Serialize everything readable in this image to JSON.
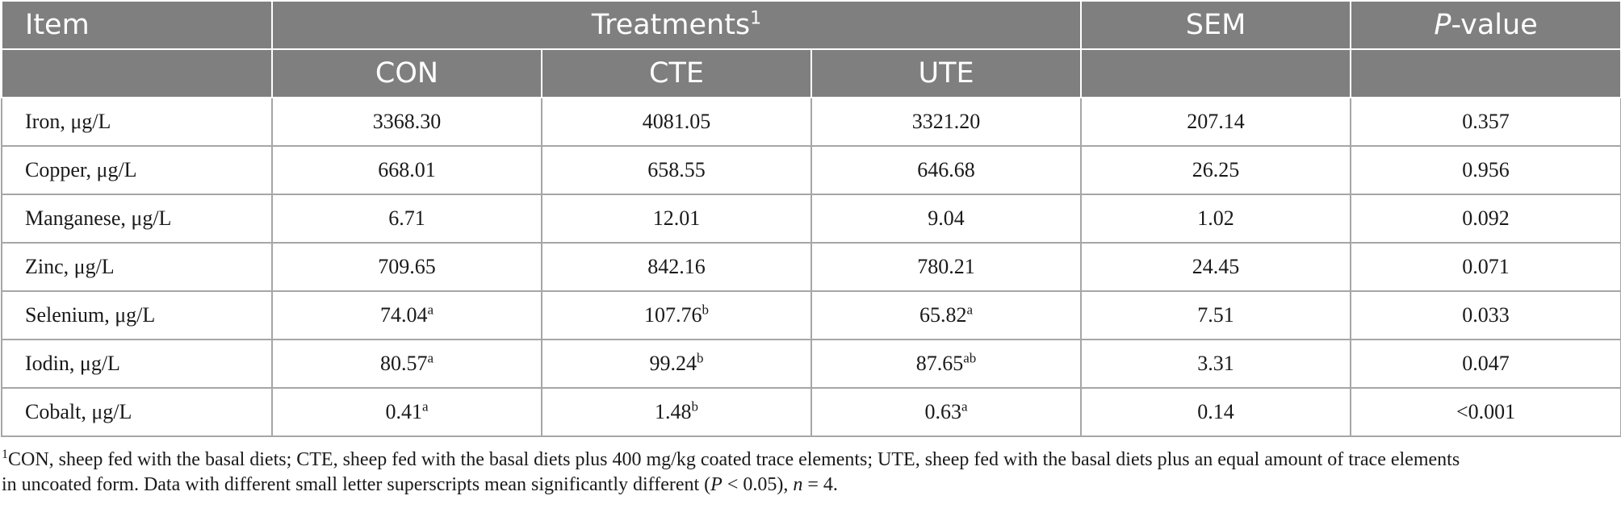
{
  "table": {
    "headers": {
      "item": "Item",
      "treatments": "Treatments",
      "treatments_sup": "1",
      "sem": "SEM",
      "pvalue_italic": "P",
      "pvalue_rest": "-value",
      "con": "CON",
      "cte": "CTE",
      "ute": "UTE"
    },
    "rows": [
      {
        "item": "Iron, μg/L",
        "con": "3368.30",
        "con_sup": "",
        "cte": "4081.05",
        "cte_sup": "",
        "ute": "3321.20",
        "ute_sup": "",
        "sem": "207.14",
        "p": "0.357"
      },
      {
        "item": "Copper, μg/L",
        "con": "668.01",
        "con_sup": "",
        "cte": "658.55",
        "cte_sup": "",
        "ute": "646.68",
        "ute_sup": "",
        "sem": "26.25",
        "p": "0.956"
      },
      {
        "item": "Manganese, μg/L",
        "con": "6.71",
        "con_sup": "",
        "cte": "12.01",
        "cte_sup": "",
        "ute": "9.04",
        "ute_sup": "",
        "sem": "1.02",
        "p": "0.092"
      },
      {
        "item": "Zinc, μg/L",
        "con": "709.65",
        "con_sup": "",
        "cte": "842.16",
        "cte_sup": "",
        "ute": "780.21",
        "ute_sup": "",
        "sem": "24.45",
        "p": "0.071"
      },
      {
        "item": "Selenium, μg/L",
        "con": "74.04",
        "con_sup": "a",
        "cte": "107.76",
        "cte_sup": "b",
        "ute": "65.82",
        "ute_sup": "a",
        "sem": "7.51",
        "p": "0.033"
      },
      {
        "item": "Iodin, μg/L",
        "con": "80.57",
        "con_sup": "a",
        "cte": "99.24",
        "cte_sup": "b",
        "ute": "87.65",
        "ute_sup": "ab",
        "sem": "3.31",
        "p": "0.047"
      },
      {
        "item": "Cobalt, μg/L",
        "con": "0.41",
        "con_sup": "a",
        "cte": "1.48",
        "cte_sup": "b",
        "ute": "0.63",
        "ute_sup": "a",
        "sem": "0.14",
        "p": "<0.001"
      }
    ]
  },
  "footnote": {
    "sup": "1",
    "line1": "CON, sheep fed with the basal diets; CTE, sheep fed with the basal diets plus 400 mg/kg coated trace elements; UTE, sheep fed with the basal diets plus an equal amount of trace elements",
    "line2_a": "in uncoated form. Data with different small letter superscripts mean significantly different (",
    "line2_p": "P",
    "line2_b": " < 0.05), ",
    "line2_n": "n",
    "line2_c": " = 4."
  },
  "colors": {
    "header_bg": "#7f7f7f",
    "header_text": "#ffffff",
    "grid": "#a6a6a6"
  }
}
